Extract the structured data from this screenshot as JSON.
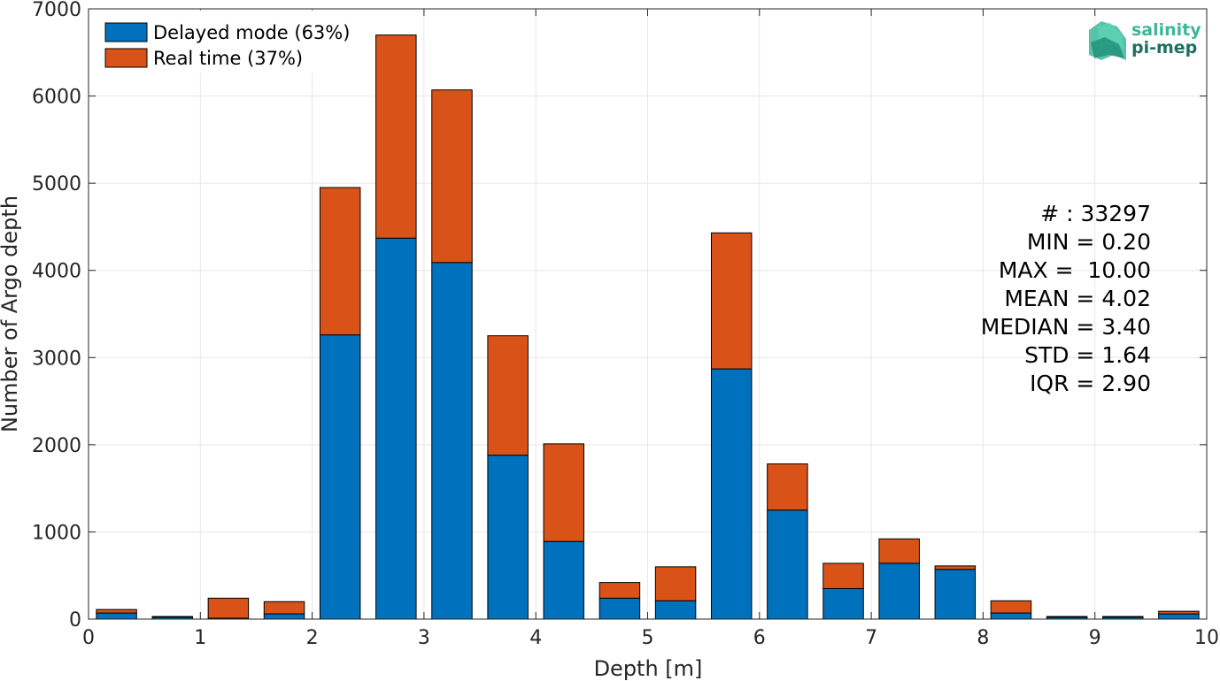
{
  "chart_data": {
    "type": "bar",
    "stacked": true,
    "xlabel": "Depth [m]",
    "ylabel": "Number of Argo depth",
    "xlim": [
      0,
      10
    ],
    "ylim": [
      0,
      7000
    ],
    "xticks": [
      0,
      1,
      2,
      3,
      4,
      5,
      6,
      7,
      8,
      9,
      10
    ],
    "yticks": [
      0,
      1000,
      2000,
      3000,
      4000,
      5000,
      6000,
      7000
    ],
    "grid": true,
    "legend_position": "top-left",
    "bin_width": 0.5,
    "bin_centers": [
      0.25,
      0.75,
      1.25,
      1.75,
      2.25,
      2.75,
      3.25,
      3.75,
      4.25,
      4.75,
      5.25,
      5.75,
      6.25,
      6.75,
      7.25,
      7.75,
      8.25,
      8.75,
      9.25,
      9.75
    ],
    "series": [
      {
        "name": "Delayed mode (63%)",
        "color": "#0072BD",
        "values": [
          70,
          20,
          10,
          60,
          3260,
          4370,
          4090,
          1880,
          890,
          240,
          210,
          2870,
          1250,
          350,
          640,
          570,
          70,
          20,
          20,
          60
        ]
      },
      {
        "name": "Real time (37%)",
        "color": "#D95319",
        "values": [
          40,
          10,
          230,
          140,
          1690,
          2330,
          1980,
          1370,
          1120,
          180,
          390,
          1560,
          530,
          290,
          280,
          40,
          140,
          10,
          10,
          30
        ]
      }
    ],
    "stats": [
      "# : 33297",
      "MIN = 0.20",
      "MAX =  10.00",
      "MEAN = 4.02",
      "MEDIAN = 3.40",
      "STD = 1.64",
      "IQR = 2.90"
    ]
  },
  "logo": {
    "line1": "salinity",
    "line2": "pi-mep",
    "color1": "#3bb89a",
    "color2": "#1f6f63"
  }
}
